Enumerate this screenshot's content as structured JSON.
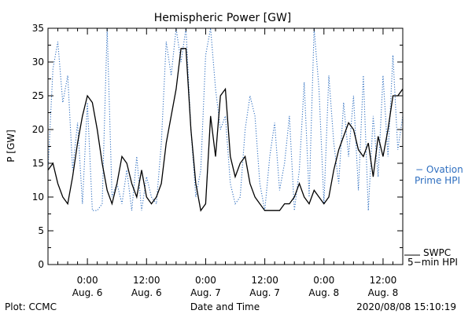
{
  "chart_data": {
    "type": "line",
    "title": "Hemispheric Power [GW]",
    "xlabel": "Date and Time",
    "ylabel": "P [GW]",
    "ylim": [
      0,
      35
    ],
    "yticks": [
      0,
      5,
      10,
      15,
      20,
      25,
      30,
      35
    ],
    "xlim": [
      "2020-08-05T16:00",
      "2020-08-08T16:00"
    ],
    "xticks": [
      {
        "t": "2020-08-06T00:00",
        "line1": "0:00",
        "line2": "Aug. 6"
      },
      {
        "t": "2020-08-06T12:00",
        "line1": "12:00",
        "line2": "Aug. 6"
      },
      {
        "t": "2020-08-07T00:00",
        "line1": "0:00",
        "line2": "Aug. 7"
      },
      {
        "t": "2020-08-07T12:00",
        "line1": "12:00",
        "line2": "Aug. 7"
      },
      {
        "t": "2020-08-08T00:00",
        "line1": "0:00",
        "line2": "Aug. 8"
      },
      {
        "t": "2020-08-08T12:00",
        "line1": "12:00",
        "line2": "Aug. 8"
      }
    ],
    "grid": false,
    "legend_placement": "right",
    "series": [
      {
        "name": "SWPC 5-min HPI",
        "legend_lines": [
          "SWPC",
          "5−min HPI"
        ],
        "color": "#000000",
        "style": "solid",
        "points": [
          [
            "2020-08-05T16:00",
            14
          ],
          [
            "2020-08-05T17:00",
            15
          ],
          [
            "2020-08-05T18:00",
            12
          ],
          [
            "2020-08-05T19:00",
            10
          ],
          [
            "2020-08-05T20:00",
            9
          ],
          [
            "2020-08-05T21:00",
            13
          ],
          [
            "2020-08-05T22:00",
            18
          ],
          [
            "2020-08-05T23:00",
            22
          ],
          [
            "2020-08-06T00:00",
            25
          ],
          [
            "2020-08-06T01:00",
            24
          ],
          [
            "2020-08-06T02:00",
            20
          ],
          [
            "2020-08-06T03:00",
            15
          ],
          [
            "2020-08-06T04:00",
            11
          ],
          [
            "2020-08-06T05:00",
            9
          ],
          [
            "2020-08-06T06:00",
            12
          ],
          [
            "2020-08-06T07:00",
            16
          ],
          [
            "2020-08-06T08:00",
            15
          ],
          [
            "2020-08-06T09:00",
            12
          ],
          [
            "2020-08-06T10:00",
            10
          ],
          [
            "2020-08-06T11:00",
            14
          ],
          [
            "2020-08-06T12:00",
            10
          ],
          [
            "2020-08-06T13:00",
            9
          ],
          [
            "2020-08-06T14:00",
            10
          ],
          [
            "2020-08-06T15:00",
            12
          ],
          [
            "2020-08-06T16:00",
            18
          ],
          [
            "2020-08-06T17:00",
            22
          ],
          [
            "2020-08-06T18:00",
            26
          ],
          [
            "2020-08-06T19:00",
            32
          ],
          [
            "2020-08-06T20:00",
            32
          ],
          [
            "2020-08-06T21:00",
            20
          ],
          [
            "2020-08-06T22:00",
            12
          ],
          [
            "2020-08-06T23:00",
            8
          ],
          [
            "2020-08-07T00:00",
            9
          ],
          [
            "2020-08-07T01:00",
            22
          ],
          [
            "2020-08-07T02:00",
            16
          ],
          [
            "2020-08-07T03:00",
            25
          ],
          [
            "2020-08-07T04:00",
            26
          ],
          [
            "2020-08-07T05:00",
            16
          ],
          [
            "2020-08-07T06:00",
            13
          ],
          [
            "2020-08-07T07:00",
            15
          ],
          [
            "2020-08-07T08:00",
            16
          ],
          [
            "2020-08-07T09:00",
            12
          ],
          [
            "2020-08-07T10:00",
            10
          ],
          [
            "2020-08-07T11:00",
            9
          ],
          [
            "2020-08-07T12:00",
            8
          ],
          [
            "2020-08-07T13:00",
            8
          ],
          [
            "2020-08-07T14:00",
            8
          ],
          [
            "2020-08-07T15:00",
            8
          ],
          [
            "2020-08-07T16:00",
            9
          ],
          [
            "2020-08-07T17:00",
            9
          ],
          [
            "2020-08-07T18:00",
            10
          ],
          [
            "2020-08-07T19:00",
            12
          ],
          [
            "2020-08-07T20:00",
            10
          ],
          [
            "2020-08-07T21:00",
            9
          ],
          [
            "2020-08-07T22:00",
            11
          ],
          [
            "2020-08-07T23:00",
            10
          ],
          [
            "2020-08-08T00:00",
            9
          ],
          [
            "2020-08-08T01:00",
            10
          ],
          [
            "2020-08-08T02:00",
            14
          ],
          [
            "2020-08-08T03:00",
            17
          ],
          [
            "2020-08-08T04:00",
            19
          ],
          [
            "2020-08-08T05:00",
            21
          ],
          [
            "2020-08-08T06:00",
            20
          ],
          [
            "2020-08-08T07:00",
            17
          ],
          [
            "2020-08-08T08:00",
            16
          ],
          [
            "2020-08-08T09:00",
            18
          ],
          [
            "2020-08-08T10:00",
            13
          ],
          [
            "2020-08-08T11:00",
            19
          ],
          [
            "2020-08-08T12:00",
            16
          ],
          [
            "2020-08-08T13:00",
            20
          ],
          [
            "2020-08-08T14:00",
            25
          ],
          [
            "2020-08-08T15:00",
            25
          ],
          [
            "2020-08-08T16:00",
            26
          ]
        ]
      },
      {
        "name": "Ovation Prime HPI",
        "legend_lines": [
          "− Ovation",
          "Prime HPI"
        ],
        "color": "#2f6fc0",
        "style": "dotted",
        "points": [
          [
            "2020-08-05T16:00",
            14
          ],
          [
            "2020-08-05T17:00",
            29
          ],
          [
            "2020-08-05T18:00",
            33
          ],
          [
            "2020-08-05T19:00",
            24
          ],
          [
            "2020-08-05T20:00",
            28
          ],
          [
            "2020-08-05T21:00",
            14
          ],
          [
            "2020-08-05T22:00",
            21
          ],
          [
            "2020-08-05T23:00",
            9
          ],
          [
            "2020-08-06T00:00",
            24
          ],
          [
            "2020-08-06T01:00",
            8
          ],
          [
            "2020-08-06T02:00",
            8
          ],
          [
            "2020-08-06T03:00",
            9
          ],
          [
            "2020-08-06T04:00",
            35
          ],
          [
            "2020-08-06T05:00",
            10
          ],
          [
            "2020-08-06T06:00",
            12
          ],
          [
            "2020-08-06T07:00",
            9
          ],
          [
            "2020-08-06T08:00",
            14
          ],
          [
            "2020-08-06T09:00",
            8
          ],
          [
            "2020-08-06T10:00",
            16
          ],
          [
            "2020-08-06T11:00",
            8
          ],
          [
            "2020-08-06T12:00",
            13
          ],
          [
            "2020-08-06T13:00",
            10
          ],
          [
            "2020-08-06T14:00",
            9
          ],
          [
            "2020-08-06T15:00",
            18
          ],
          [
            "2020-08-06T16:00",
            33
          ],
          [
            "2020-08-06T17:00",
            28
          ],
          [
            "2020-08-06T18:00",
            35
          ],
          [
            "2020-08-06T19:00",
            30
          ],
          [
            "2020-08-06T20:00",
            35
          ],
          [
            "2020-08-06T21:00",
            20
          ],
          [
            "2020-08-06T22:00",
            10
          ],
          [
            "2020-08-06T23:00",
            14
          ],
          [
            "2020-08-07T00:00",
            31
          ],
          [
            "2020-08-07T01:00",
            35
          ],
          [
            "2020-08-07T02:00",
            26
          ],
          [
            "2020-08-07T03:00",
            20
          ],
          [
            "2020-08-07T04:00",
            22
          ],
          [
            "2020-08-07T05:00",
            12
          ],
          [
            "2020-08-07T06:00",
            9
          ],
          [
            "2020-08-07T07:00",
            10
          ],
          [
            "2020-08-07T08:00",
            20
          ],
          [
            "2020-08-07T09:00",
            25
          ],
          [
            "2020-08-07T10:00",
            22
          ],
          [
            "2020-08-07T11:00",
            12
          ],
          [
            "2020-08-07T12:00",
            8
          ],
          [
            "2020-08-07T13:00",
            16
          ],
          [
            "2020-08-07T14:00",
            21
          ],
          [
            "2020-08-07T15:00",
            11
          ],
          [
            "2020-08-07T16:00",
            15
          ],
          [
            "2020-08-07T17:00",
            22
          ],
          [
            "2020-08-07T18:00",
            8
          ],
          [
            "2020-08-07T19:00",
            14
          ],
          [
            "2020-08-07T20:00",
            27
          ],
          [
            "2020-08-07T21:00",
            10
          ],
          [
            "2020-08-07T22:00",
            35
          ],
          [
            "2020-08-07T23:00",
            26
          ],
          [
            "2020-08-08T00:00",
            9
          ],
          [
            "2020-08-08T01:00",
            28
          ],
          [
            "2020-08-08T02:00",
            18
          ],
          [
            "2020-08-08T03:00",
            12
          ],
          [
            "2020-08-08T04:00",
            24
          ],
          [
            "2020-08-08T05:00",
            16
          ],
          [
            "2020-08-08T06:00",
            25
          ],
          [
            "2020-08-08T07:00",
            11
          ],
          [
            "2020-08-08T08:00",
            28
          ],
          [
            "2020-08-08T09:00",
            8
          ],
          [
            "2020-08-08T10:00",
            22
          ],
          [
            "2020-08-08T11:00",
            13
          ],
          [
            "2020-08-08T12:00",
            28
          ],
          [
            "2020-08-08T13:00",
            16
          ],
          [
            "2020-08-08T14:00",
            31
          ],
          [
            "2020-08-08T15:00",
            17
          ],
          [
            "2020-08-08T16:00",
            22
          ]
        ]
      }
    ]
  },
  "footer": {
    "plot_credit": "Plot: CCMC",
    "timestamp": "2020/08/08 15:10:19"
  }
}
